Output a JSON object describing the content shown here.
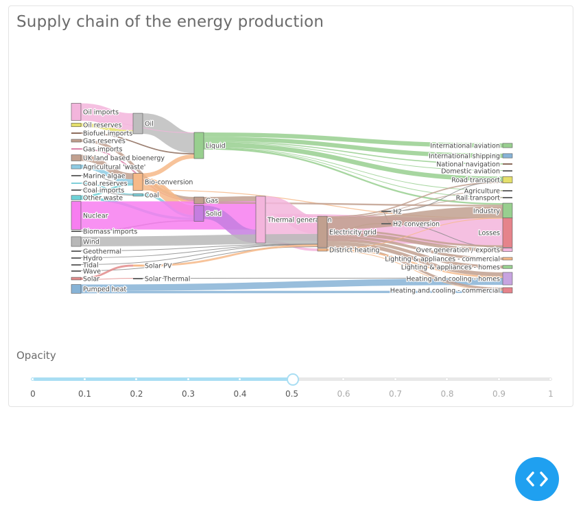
{
  "title": "Supply chain of the energy production",
  "opacity": {
    "label": "Opacity",
    "value": 0.5,
    "ticks": [
      "0",
      "0.1",
      "0.2",
      "0.3",
      "0.4",
      "0.5",
      "0.6",
      "0.7",
      "0.8",
      "0.9",
      "1"
    ]
  },
  "fab": {
    "icon": "code-brackets-icon"
  },
  "chart_data": {
    "type": "sankey",
    "nodes": [
      {
        "id": "oil_imports",
        "label": "Oil imports",
        "color": "#f3b5dc"
      },
      {
        "id": "oil_reserves",
        "label": "Oil reserves",
        "color": "#e4df6b"
      },
      {
        "id": "biofuel_imports",
        "label": "Biofuel imports",
        "color": "#8c6b5b"
      },
      {
        "id": "gas_reserves",
        "label": "Gas reserves",
        "color": "#c1a08f"
      },
      {
        "id": "gas_imports",
        "label": "Gas imports",
        "color": "#d97fa8"
      },
      {
        "id": "uk_land",
        "label": "UK land based bioenergy",
        "color": "#c1a08f"
      },
      {
        "id": "agri_waste",
        "label": "Agricultural 'waste'",
        "color": "#8ecbe3"
      },
      {
        "id": "marine_algae",
        "label": "Marine algae",
        "color": "#666666"
      },
      {
        "id": "coal_reserves",
        "label": "Coal reserves",
        "color": "#7fcfd9"
      },
      {
        "id": "coal_imports",
        "label": "Coal imports",
        "color": "#666666"
      },
      {
        "id": "other_waste",
        "label": "Other waste",
        "color": "#6ed1d6"
      },
      {
        "id": "nuclear",
        "label": "Nuclear",
        "color": "#f77ef0"
      },
      {
        "id": "biomass_imports",
        "label": "Biomass imports",
        "color": "#666666"
      },
      {
        "id": "wind",
        "label": "Wind",
        "color": "#b8b8b8"
      },
      {
        "id": "geothermal",
        "label": "Geothermal",
        "color": "#666666"
      },
      {
        "id": "hydro",
        "label": "Hydro",
        "color": "#666666"
      },
      {
        "id": "tidal",
        "label": "Tidal",
        "color": "#666666"
      },
      {
        "id": "wave",
        "label": "Wave",
        "color": "#666666"
      },
      {
        "id": "solar",
        "label": "Solar",
        "color": "#e28b8b"
      },
      {
        "id": "pumped_heat",
        "label": "Pumped heat",
        "color": "#87b3d6"
      },
      {
        "id": "oil",
        "label": "Oil",
        "color": "#bdbdbd"
      },
      {
        "id": "bio_conversion",
        "label": "Bio-conversion",
        "color": "#f6b988"
      },
      {
        "id": "coal",
        "label": "Coal",
        "color": "#7fcfd9"
      },
      {
        "id": "solar_pv",
        "label": "Solar PV",
        "color": "#f6b988"
      },
      {
        "id": "solar_thermal",
        "label": "Solar Thermal",
        "color": "#666666"
      },
      {
        "id": "liquid",
        "label": "Liquid",
        "color": "#98cf8f"
      },
      {
        "id": "gas",
        "label": "Gas",
        "color": "#c1a08f"
      },
      {
        "id": "solid",
        "label": "Solid",
        "color": "#c57ee0"
      },
      {
        "id": "thermal_generation",
        "label": "Thermal generation",
        "color": "#f3b5dc"
      },
      {
        "id": "electricity_grid",
        "label": "Electricity grid",
        "color": "#c1a08f"
      },
      {
        "id": "district_heating",
        "label": "District heating",
        "color": "#f6b988"
      },
      {
        "id": "h2_conversion",
        "label": "H2 conversion",
        "color": "#666666"
      },
      {
        "id": "h2",
        "label": "H2",
        "color": "#666666"
      },
      {
        "id": "international_aviation",
        "label": "International aviation",
        "color": "#98cf8f"
      },
      {
        "id": "international_shipping",
        "label": "International shipping",
        "color": "#87b3d6"
      },
      {
        "id": "national_navigation",
        "label": "National navigation",
        "color": "#8c6b5b"
      },
      {
        "id": "domestic_aviation",
        "label": "Domestic aviation",
        "color": "#666666"
      },
      {
        "id": "road_transport",
        "label": "Road transport",
        "color": "#e4df6b"
      },
      {
        "id": "agriculture",
        "label": "Agriculture",
        "color": "#666666"
      },
      {
        "id": "rail_transport",
        "label": "Rail transport",
        "color": "#666666"
      },
      {
        "id": "industry",
        "label": "Industry",
        "color": "#98cf8f"
      },
      {
        "id": "losses",
        "label": "Losses",
        "color": "#e5838b"
      },
      {
        "id": "over_generation",
        "label": "Over generation / exports",
        "color": "#f3b5dc"
      },
      {
        "id": "lighting_commercial",
        "label": "Lighting & appliances - commercial",
        "color": "#f6b988"
      },
      {
        "id": "lighting_homes",
        "label": "Lighting & appliances - homes",
        "color": "#98cf8f"
      },
      {
        "id": "heating_homes",
        "label": "Heating and cooling - homes",
        "color": "#c7a4e0"
      },
      {
        "id": "heating_commercial",
        "label": "Heating and cooling - commercial",
        "color": "#e5838b"
      }
    ],
    "links": [
      {
        "source": "oil_imports",
        "target": "oil",
        "value": 504
      },
      {
        "source": "oil_reserves",
        "target": "oil",
        "value": 107
      },
      {
        "source": "oil",
        "target": "liquid",
        "value": 611
      },
      {
        "source": "oil_imports",
        "target": "liquid",
        "value": 8
      },
      {
        "source": "biofuel_imports",
        "target": "liquid",
        "value": 35
      },
      {
        "source": "gas_reserves",
        "target": "gas",
        "value": 82
      },
      {
        "source": "gas_imports",
        "target": "gas",
        "value": 40
      },
      {
        "source": "uk_land",
        "target": "bio_conversion",
        "value": 182
      },
      {
        "source": "agri_waste",
        "target": "bio_conversion",
        "value": 124
      },
      {
        "source": "marine_algae",
        "target": "bio_conversion",
        "value": 4
      },
      {
        "source": "other_waste",
        "target": "bio_conversion",
        "value": 56
      },
      {
        "source": "other_waste",
        "target": "solid",
        "value": 77
      },
      {
        "source": "coal_reserves",
        "target": "coal",
        "value": 35
      },
      {
        "source": "coal_imports",
        "target": "coal",
        "value": 11
      },
      {
        "source": "coal",
        "target": "solid",
        "value": 75
      },
      {
        "source": "biomass_imports",
        "target": "solid",
        "value": 35
      },
      {
        "source": "bio_conversion",
        "target": "liquid",
        "value": 124
      },
      {
        "source": "bio_conversion",
        "target": "gas",
        "value": 81
      },
      {
        "source": "bio_conversion",
        "target": "solid",
        "value": 281
      },
      {
        "source": "bio_conversion",
        "target": "losses",
        "value": 26
      },
      {
        "source": "nuclear",
        "target": "thermal_generation",
        "value": 839
      },
      {
        "source": "solid",
        "target": "thermal_generation",
        "value": 400
      },
      {
        "source": "gas",
        "target": "thermal_generation",
        "value": 151
      },
      {
        "source": "liquid",
        "target": "international_aviation",
        "value": 128
      },
      {
        "source": "liquid",
        "target": "international_shipping",
        "value": 128
      },
      {
        "source": "liquid",
        "target": "national_navigation",
        "value": 33
      },
      {
        "source": "liquid",
        "target": "domestic_aviation",
        "value": 14
      },
      {
        "source": "liquid",
        "target": "road_transport",
        "value": 135
      },
      {
        "source": "liquid",
        "target": "agriculture",
        "value": 14
      },
      {
        "source": "liquid",
        "target": "rail_transport",
        "value": 9
      },
      {
        "source": "liquid",
        "target": "industry",
        "value": 48
      },
      {
        "source": "gas",
        "target": "industry",
        "value": 48
      },
      {
        "source": "thermal_generation",
        "target": "electricity_grid",
        "value": 525
      },
      {
        "source": "thermal_generation",
        "target": "losses",
        "value": 787
      },
      {
        "source": "thermal_generation",
        "target": "district_heating",
        "value": 79
      },
      {
        "source": "wind",
        "target": "electricity_grid",
        "value": 289
      },
      {
        "source": "geothermal",
        "target": "electricity_grid",
        "value": 7
      },
      {
        "source": "hydro",
        "target": "electricity_grid",
        "value": 6
      },
      {
        "source": "tidal",
        "target": "electricity_grid",
        "value": 9
      },
      {
        "source": "wave",
        "target": "electricity_grid",
        "value": 19
      },
      {
        "source": "solar",
        "target": "solar_pv",
        "value": 59
      },
      {
        "source": "solar",
        "target": "solar_thermal",
        "value": 19
      },
      {
        "source": "solar_pv",
        "target": "electricity_grid",
        "value": 59
      },
      {
        "source": "solar_thermal",
        "target": "heating_homes",
        "value": 19
      },
      {
        "source": "pumped_heat",
        "target": "heating_homes",
        "value": 193
      },
      {
        "source": "pumped_heat",
        "target": "heating_commercial",
        "value": 70
      },
      {
        "source": "electricity_grid",
        "target": "h2_conversion",
        "value": 27
      },
      {
        "source": "h2_conversion",
        "target": "h2",
        "value": 20
      },
      {
        "source": "h2_conversion",
        "target": "losses",
        "value": 7
      },
      {
        "source": "electricity_grid",
        "target": "over_generation",
        "value": 104
      },
      {
        "source": "electricity_grid",
        "target": "heating_homes",
        "value": 113
      },
      {
        "source": "electricity_grid",
        "target": "heating_commercial",
        "value": 70
      },
      {
        "source": "electricity_grid",
        "target": "lighting_homes",
        "value": 93
      },
      {
        "source": "electricity_grid",
        "target": "lighting_commercial",
        "value": 79
      },
      {
        "source": "electricity_grid",
        "target": "industry",
        "value": 342
      },
      {
        "source": "electricity_grid",
        "target": "road_transport",
        "value": 37
      },
      {
        "source": "electricity_grid",
        "target": "rail_transport",
        "value": 7
      },
      {
        "source": "electricity_grid",
        "target": "agriculture",
        "value": 4
      },
      {
        "source": "electricity_grid",
        "target": "losses",
        "value": 56
      },
      {
        "source": "district_heating",
        "target": "heating_homes",
        "value": 46
      },
      {
        "source": "district_heating",
        "target": "heating_commercial",
        "value": 22
      },
      {
        "source": "district_heating",
        "target": "industry",
        "value": 10
      },
      {
        "source": "h2",
        "target": "road_transport",
        "value": 20
      }
    ]
  }
}
